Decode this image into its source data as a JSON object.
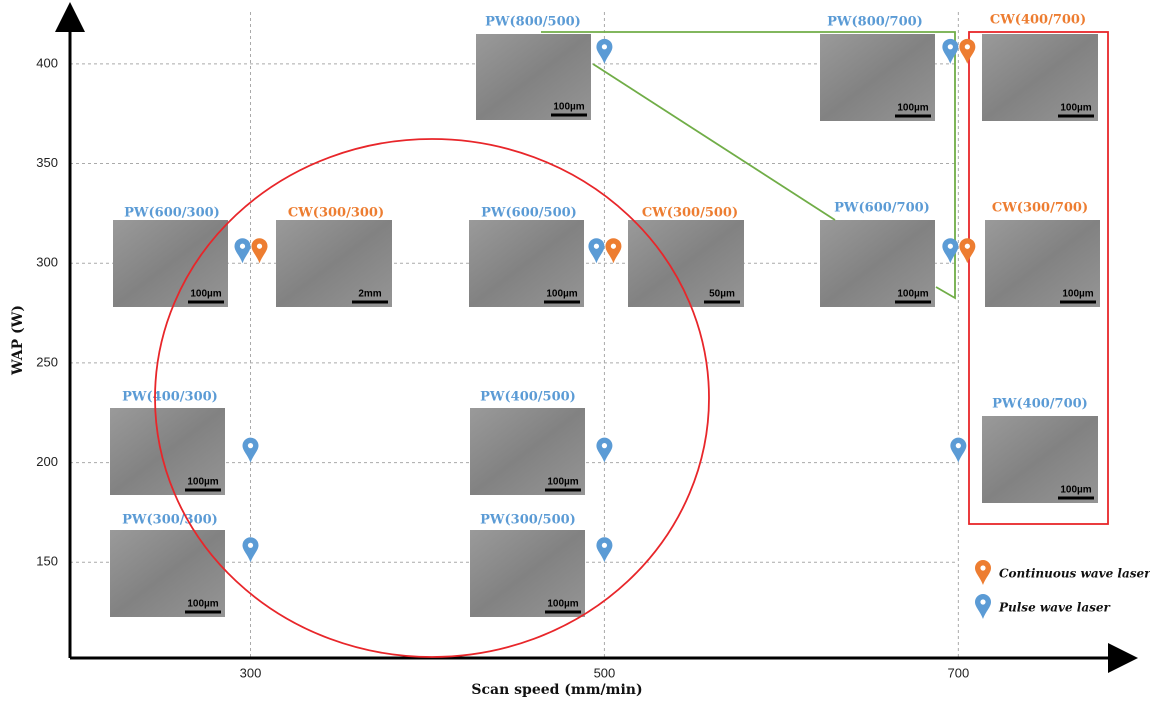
{
  "chart_data": {
    "type": "scatter",
    "x_label": "Scan speed (mm/min)",
    "y_label": "WAP (W)",
    "xlim": [
      198,
      797
    ],
    "ylim": [
      102,
      427
    ],
    "xticks": [
      300,
      500,
      700
    ],
    "yticks": [
      150,
      200,
      250,
      300,
      350,
      400
    ],
    "grid": true,
    "series": [
      {
        "name": "Continuous wave laser",
        "color": "#ed7d31",
        "x": [
          300,
          500,
          700,
          700
        ],
        "values": [
          300,
          300,
          400,
          300
        ]
      },
      {
        "name": "Pulse wave laser",
        "color": "#5b9bd5",
        "x": [
          300,
          300,
          300,
          500,
          500,
          500,
          500,
          700,
          700,
          700
        ],
        "values": [
          300,
          200,
          150,
          400,
          300,
          200,
          150,
          400,
          300,
          200
        ]
      }
    ],
    "panels": [
      {
        "label": "PW(800/500)",
        "scale": "100µm"
      },
      {
        "label": "PW(800/700)",
        "scale": "100µm"
      },
      {
        "label": "CW(400/700)",
        "scale": "100µm"
      },
      {
        "label": "PW(600/300)",
        "scale": "100µm"
      },
      {
        "label": "CW(300/300)",
        "scale": "2mm"
      },
      {
        "label": "PW(600/500)",
        "scale": "100µm"
      },
      {
        "label": "CW(300/500)",
        "scale": "50µm"
      },
      {
        "label": "PW(600/700)",
        "scale": "100µm"
      },
      {
        "label": "CW(300/700)",
        "scale": "100µm"
      },
      {
        "label": "PW(400/300)",
        "scale": "100µm"
      },
      {
        "label": "PW(400/500)",
        "scale": "100µm"
      },
      {
        "label": "PW(400/700)",
        "scale": "100µm"
      },
      {
        "label": "PW(300/300)",
        "scale": "100µm"
      },
      {
        "label": "PW(300/500)",
        "scale": "100µm"
      }
    ]
  }
}
